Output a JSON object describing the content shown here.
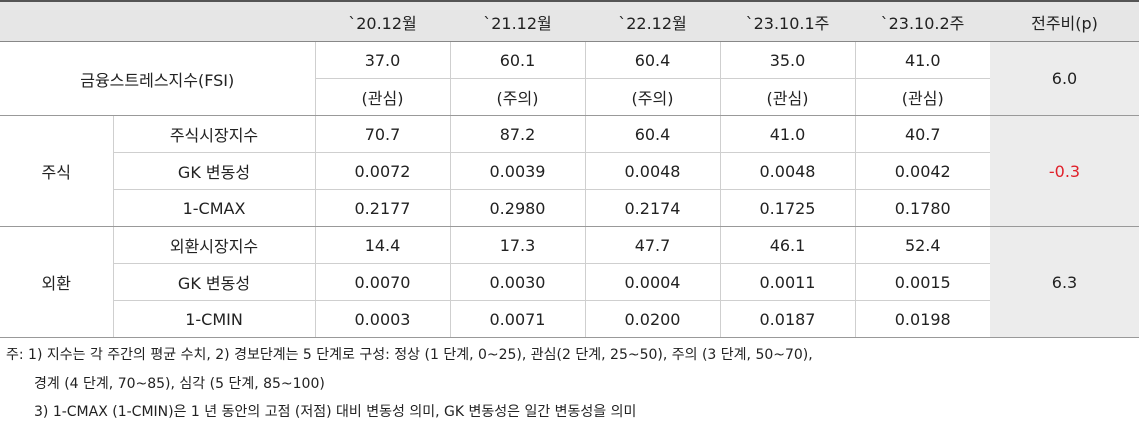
{
  "table": {
    "columns": [
      "`20.12월",
      "`21.12월",
      "`22.12월",
      "`23.10.1주",
      "`23.10.2주",
      "전주비(p)"
    ],
    "fsi": {
      "label": "금융스트레스지수(FSI)",
      "values": [
        "37.0",
        "60.1",
        "60.4",
        "35.0",
        "41.0"
      ],
      "levels": [
        "(관심)",
        "(주의)",
        "(주의)",
        "(관심)",
        "(관심)"
      ],
      "change": "6.0"
    },
    "groups": [
      {
        "label": "주식",
        "change": "-0.3",
        "rows": [
          {
            "label": "주식시장지수",
            "values": [
              "70.7",
              "87.2",
              "60.4",
              "41.0",
              "40.7"
            ]
          },
          {
            "label": "GK 변동성",
            "values": [
              "0.0072",
              "0.0039",
              "0.0048",
              "0.0048",
              "0.0042"
            ]
          },
          {
            "label": "1-CMAX",
            "values": [
              "0.2177",
              "0.2980",
              "0.2174",
              "0.1725",
              "0.1780"
            ]
          }
        ]
      },
      {
        "label": "외환",
        "change": "6.3",
        "rows": [
          {
            "label": "외환시장지수",
            "values": [
              "14.4",
              "17.3",
              "47.7",
              "46.1",
              "52.4"
            ]
          },
          {
            "label": "GK 변동성",
            "values": [
              "0.0070",
              "0.0030",
              "0.0004",
              "0.0011",
              "0.0015"
            ]
          },
          {
            "label": "1-CMIN",
            "values": [
              "0.0003",
              "0.0071",
              "0.0200",
              "0.0187",
              "0.0198"
            ]
          }
        ]
      }
    ]
  },
  "notes": [
    "주: 1) 지수는 각 주간의 평균 수치, 2) 경보단계는 5 단계로 구성: 정상 (1 단계, 0~25), 관심(2 단계, 25~50), 주의 (3 단계, 50~70),",
    "경계 (4 단계, 70~85), 심각 (5 단계, 85~100)",
    "3) 1-CMAX (1-CMIN)은 1 년 동안의 고점 (저점) 대비 변동성 의미, GK 변동성은 일간 변동성을 의미"
  ]
}
